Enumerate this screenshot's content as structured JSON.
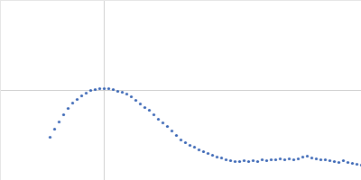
{
  "chart_data": {
    "type": "scatter",
    "color": "#3a66b5",
    "marker": "circle",
    "grid": true,
    "tick_labels": false,
    "xlim": [
      0,
      4
    ],
    "ylim": [
      0,
      2
    ],
    "xticks": [
      1.15
    ],
    "yticks": [
      1
    ],
    "x": [
      0.55,
      0.6,
      0.65,
      0.7,
      0.75,
      0.8,
      0.85,
      0.9,
      0.95,
      1.0,
      1.05,
      1.1,
      1.15,
      1.2,
      1.25,
      1.3,
      1.35,
      1.4,
      1.45,
      1.5,
      1.55,
      1.6,
      1.65,
      1.7,
      1.75,
      1.8,
      1.85,
      1.9,
      1.95,
      2.0,
      2.05,
      2.1,
      2.15,
      2.2,
      2.25,
      2.3,
      2.35,
      2.4,
      2.45,
      2.5,
      2.55,
      2.6,
      2.65,
      2.7,
      2.75,
      2.8,
      2.85,
      2.9,
      2.95,
      3.0,
      3.05,
      3.1,
      3.15,
      3.2,
      3.25,
      3.3,
      3.35,
      3.4,
      3.45,
      3.5,
      3.55,
      3.6,
      3.65,
      3.7,
      3.75,
      3.8,
      3.85,
      3.9,
      3.95,
      4.0
    ],
    "values": [
      0.48,
      0.57,
      0.65,
      0.73,
      0.8,
      0.86,
      0.9,
      0.94,
      0.97,
      1.0,
      1.01,
      1.02,
      1.02,
      1.02,
      1.01,
      0.99,
      0.98,
      0.96,
      0.93,
      0.89,
      0.85,
      0.81,
      0.78,
      0.73,
      0.68,
      0.64,
      0.6,
      0.55,
      0.5,
      0.45,
      0.42,
      0.39,
      0.37,
      0.34,
      0.32,
      0.3,
      0.28,
      0.26,
      0.25,
      0.23,
      0.22,
      0.21,
      0.21,
      0.22,
      0.21,
      0.22,
      0.21,
      0.23,
      0.22,
      0.23,
      0.23,
      0.24,
      0.23,
      0.24,
      0.23,
      0.24,
      0.26,
      0.27,
      0.25,
      0.24,
      0.23,
      0.23,
      0.22,
      0.21,
      0.2,
      0.22,
      0.2,
      0.19,
      0.18,
      0.17
    ]
  }
}
